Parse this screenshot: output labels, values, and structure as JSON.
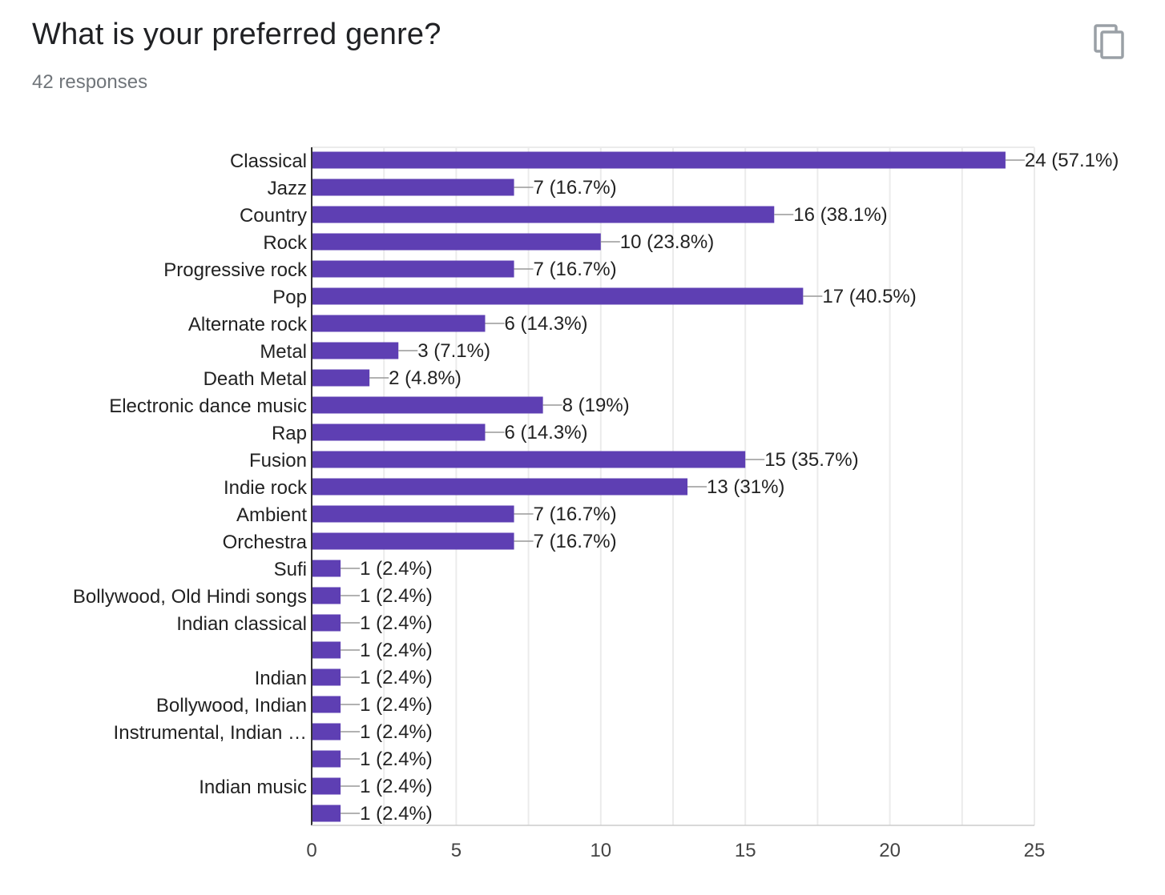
{
  "header": {
    "title": "What is your preferred genre?",
    "responses": "42 responses",
    "copy_icon": "copy-icon"
  },
  "colors": {
    "bar": "#5e3fb3",
    "grid": "#ebebeb",
    "axis": "#333333",
    "text": "#222222"
  },
  "chart_data": {
    "type": "bar",
    "orientation": "horizontal",
    "title": "",
    "xlabel": "",
    "ylabel": "",
    "xlim": [
      0,
      25
    ],
    "x_ticks": [
      0,
      5,
      10,
      15,
      20,
      25
    ],
    "grid": true,
    "categories": [
      "Classical",
      "Jazz",
      "Country",
      "Rock",
      "Progressive rock",
      "Pop",
      "Alternate rock",
      "Metal",
      "Death Metal",
      "Electronic dance music",
      "Rap",
      "Fusion",
      "Indie rock",
      "Ambient",
      "Orchestra",
      "Sufi",
      "Bollywood, Old Hindi songs",
      "Indian classical",
      "",
      "Indian",
      "Bollywood, Indian",
      "Instrumental, Indian …",
      "",
      "Indian music",
      ""
    ],
    "values": [
      24,
      7,
      16,
      10,
      7,
      17,
      6,
      3,
      2,
      8,
      6,
      15,
      13,
      7,
      7,
      1,
      1,
      1,
      1,
      1,
      1,
      1,
      1,
      1,
      1
    ],
    "value_labels": [
      "24 (57.1%)",
      "7 (16.7%)",
      "16 (38.1%)",
      "10 (23.8%)",
      "7 (16.7%)",
      "17 (40.5%)",
      "6 (14.3%)",
      "3 (7.1%)",
      "2 (4.8%)",
      "8 (19%)",
      "6 (14.3%)",
      "15 (35.7%)",
      "13 (31%)",
      "7 (16.7%)",
      "7 (16.7%)",
      "1 (2.4%)",
      "1 (2.4%)",
      "1 (2.4%)",
      "1 (2.4%)",
      "1 (2.4%)",
      "1 (2.4%)",
      "1 (2.4%)",
      "1 (2.4%)",
      "1 (2.4%)",
      "1 (2.4%)"
    ]
  }
}
